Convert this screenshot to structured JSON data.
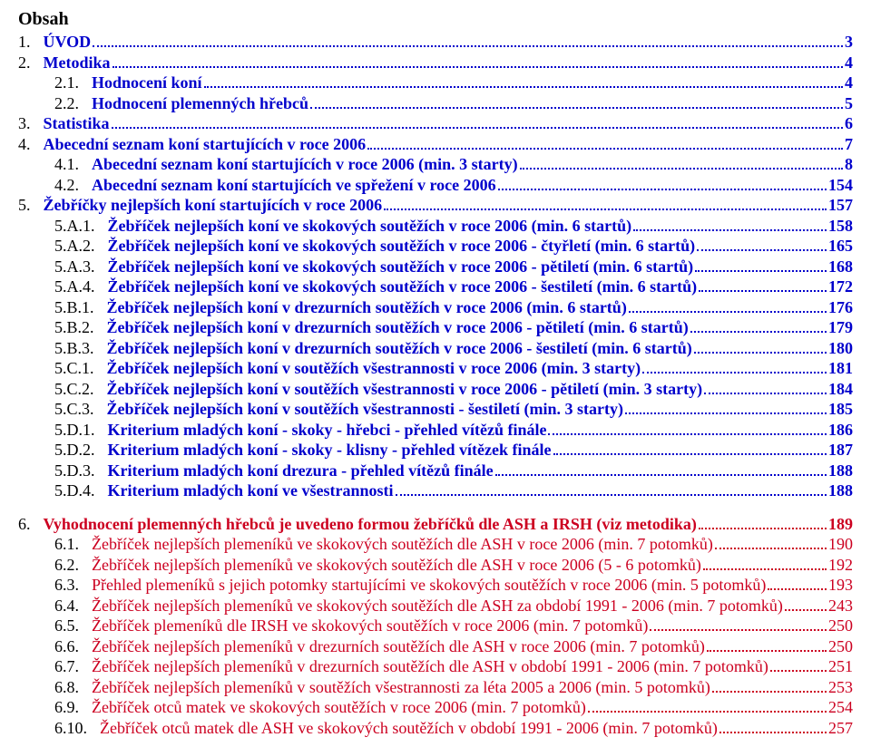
{
  "title": "Obsah",
  "colors": {
    "blue": "#0000cc",
    "red": "#cc0020",
    "text": "#000000",
    "bg": "#ffffff"
  },
  "font": {
    "family": "Times New Roman",
    "size_pt": 14
  },
  "entries": [
    {
      "num": "1.",
      "label": "ÚVOD",
      "page": "3",
      "indent": 0,
      "color": "blue",
      "bold": true
    },
    {
      "num": "2.",
      "label": "Metodika",
      "page": "4",
      "indent": 0,
      "color": "blue",
      "bold": true
    },
    {
      "num": "2.1.",
      "label": "Hodnocení koní",
      "page": "4",
      "indent": 1,
      "color": "blue",
      "bold": true
    },
    {
      "num": "2.2.",
      "label": "Hodnocení plemenných hřebců",
      "page": "5",
      "indent": 1,
      "color": "blue",
      "bold": true
    },
    {
      "num": "3.",
      "label": "Statistika",
      "page": "6",
      "indent": 0,
      "color": "blue",
      "bold": true
    },
    {
      "num": "4.",
      "label": "Abecední seznam koní startujících v roce 2006",
      "page": "7",
      "indent": 0,
      "color": "blue",
      "bold": true
    },
    {
      "num": "4.1.",
      "label": "Abecední seznam koní startujících v roce 2006 (min. 3 starty)",
      "page": "8",
      "indent": 1,
      "color": "blue",
      "bold": true
    },
    {
      "num": "4.2.",
      "label": "Abecední seznam koní startujících ve spřežení v roce 2006",
      "page": "154",
      "indent": 1,
      "color": "blue",
      "bold": true
    },
    {
      "num": "5.",
      "label": "Žebříčky nejlepších koní startujících v roce 2006",
      "page": "157",
      "indent": 0,
      "color": "blue",
      "bold": true
    },
    {
      "num": "5.A.1.",
      "label": "Žebříček nejlepších koní ve skokových soutěžích v roce 2006 (min. 6 startů)",
      "page": "158",
      "indent": 1,
      "color": "blue",
      "bold": true
    },
    {
      "num": "5.A.2.",
      "label": "Žebříček nejlepších koní ve skokových soutěžích v roce 2006 - čtyřletí (min. 6 startů)",
      "page": "165",
      "indent": 1,
      "color": "blue",
      "bold": true
    },
    {
      "num": "5.A.3.",
      "label": "Žebříček nejlepších koní ve skokových soutěžích v roce 2006 - pětiletí (min. 6 startů)",
      "page": "168",
      "indent": 1,
      "color": "blue",
      "bold": true
    },
    {
      "num": "5.A.4.",
      "label": "Žebříček nejlepších koní ve skokových soutěžích v roce 2006 - šestiletí (min. 6 startů)",
      "page": "172",
      "indent": 1,
      "color": "blue",
      "bold": true
    },
    {
      "num": "5.B.1.",
      "label": "Žebříček nejlepších koní v drezurních soutěžích v roce 2006 (min. 6 startů)",
      "page": "176",
      "indent": 1,
      "color": "blue",
      "bold": true
    },
    {
      "num": "5.B.2.",
      "label": "Žebříček nejlepších koní v drezurních soutěžích v roce 2006 - pětiletí (min. 6 startů)",
      "page": "179",
      "indent": 1,
      "color": "blue",
      "bold": true
    },
    {
      "num": "5.B.3.",
      "label": "Žebříček nejlepších koní v drezurních soutěžích v roce 2006 - šestiletí (min. 6 startů)",
      "page": "180",
      "indent": 1,
      "color": "blue",
      "bold": true
    },
    {
      "num": "5.C.1.",
      "label": "Žebříček nejlepších koní v soutěžích všestrannosti v roce 2006 (min. 3 starty)",
      "page": "181",
      "indent": 1,
      "color": "blue",
      "bold": true
    },
    {
      "num": "5.C.2.",
      "label": "Žebříček nejlepších koní v soutěžích všestrannosti v roce 2006 - pětiletí (min. 3 starty)",
      "page": "184",
      "indent": 1,
      "color": "blue",
      "bold": true
    },
    {
      "num": "5.C.3.",
      "label": "Žebříček nejlepších koní v soutěžích všestrannosti - šestiletí (min. 3 starty)",
      "page": "185",
      "indent": 1,
      "color": "blue",
      "bold": true
    },
    {
      "num": "5.D.1.",
      "label": "Kriterium mladých koní - skoky - hřebci - přehled vítězů finále",
      "page": "186",
      "indent": 1,
      "color": "blue",
      "bold": true
    },
    {
      "num": "5.D.2.",
      "label": "Kriterium mladých koní - skoky - klisny - přehled vítězek finále",
      "page": "187",
      "indent": 1,
      "color": "blue",
      "bold": true
    },
    {
      "num": "5.D.3.",
      "label": "Kriterium mladých koní drezura - přehled vítězů finále",
      "page": "188",
      "indent": 1,
      "color": "blue",
      "bold": true
    },
    {
      "num": "5.D.4.",
      "label": "Kriterium mladých koní ve všestrannosti",
      "page": "188",
      "indent": 1,
      "color": "blue",
      "bold": true
    },
    {
      "spacer": true
    },
    {
      "num": "6.",
      "label": "Vyhodnocení plemenných hřebců je uvedeno formou žebříčků dle ASH a IRSH (viz metodika)",
      "page": "189",
      "indent": 0,
      "color": "red",
      "bold": true
    },
    {
      "num": "6.1.",
      "label": "Žebříček nejlepších plemeníků ve skokových soutěžích dle ASH v roce 2006 (min. 7 potomků)",
      "page": "190",
      "indent": 1,
      "color": "red",
      "bold": false
    },
    {
      "num": "6.2.",
      "label": "Žebříček nejlepších plemeníků ve skokových soutěžích dle ASH  v roce 2006 (5 - 6 potomků)",
      "page": "192",
      "indent": 1,
      "color": "red",
      "bold": false
    },
    {
      "num": "6.3.",
      "label": "Přehled plemeníků s jejich potomky startujícími ve skokových soutěžích v roce 2006 (min. 5 potomků)",
      "page": "193",
      "indent": 1,
      "color": "red",
      "bold": false
    },
    {
      "num": "6.4.",
      "label": "Žebříček nejlepších plemeníků ve skokových soutěžích dle ASH za období 1991 - 2006 (min. 7 potomků)",
      "page": "243",
      "indent": 1,
      "color": "red",
      "bold": false
    },
    {
      "num": "6.5.",
      "label": "Žebříček plemeníků dle IRSH ve skokových soutěžích v roce 2006 (min. 7 potomků)",
      "page": "250",
      "indent": 1,
      "color": "red",
      "bold": false
    },
    {
      "num": "6.6.",
      "label": "Žebříček nejlepších plemeníků v drezurních soutěžích dle ASH v roce 2006 (min. 7 potomků)",
      "page": "250",
      "indent": 1,
      "color": "red",
      "bold": false
    },
    {
      "num": "6.7.",
      "label": "Žebříček nejlepších plemeníků v drezurních soutěžích dle ASH v období 1991 - 2006 (min. 7 potomků)",
      "page": "251",
      "indent": 1,
      "color": "red",
      "bold": false
    },
    {
      "num": "6.8.",
      "label": "Žebříček nejlepších plemeníků v soutěžích všestrannosti za léta 2005 a 2006 (min. 5 potomků)",
      "page": "253",
      "indent": 1,
      "color": "red",
      "bold": false
    },
    {
      "num": "6.9.",
      "label": "Žebříček otců matek ve skokových soutěžích v roce 2006 (min. 7 potomků)",
      "page": "254",
      "indent": 1,
      "color": "red",
      "bold": false
    },
    {
      "num": "6.10.",
      "label": "Žebříček otců matek dle ASH ve skokových soutěžích v období 1991 - 2006 (min. 7 potomků)",
      "page": "257",
      "indent": 1,
      "color": "red",
      "bold": false
    }
  ]
}
